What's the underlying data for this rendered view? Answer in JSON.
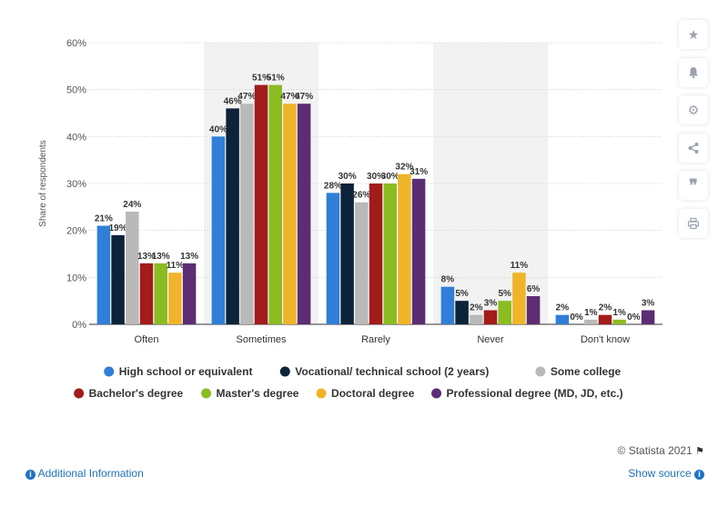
{
  "chart_data": {
    "type": "bar",
    "title": "",
    "xlabel": "",
    "ylabel": "Share of respondents",
    "ylim": [
      0,
      60
    ],
    "yticks": [
      0,
      10,
      20,
      30,
      40,
      50,
      60
    ],
    "ytick_suffix": "%",
    "grid": true,
    "legend_position": "bottom",
    "categories": [
      "Often",
      "Sometimes",
      "Rarely",
      "Never",
      "Don't know"
    ],
    "series": [
      {
        "name": "High school or equivalent",
        "color": "#2f7ed8",
        "values": [
          21,
          40,
          28,
          8,
          2
        ]
      },
      {
        "name": "Vocational/ technical school (2 years)",
        "color": "#0d233a",
        "values": [
          19,
          46,
          30,
          5,
          0
        ]
      },
      {
        "name": "Some college",
        "color": "#b9b9b9",
        "values": [
          24,
          47,
          26,
          2,
          1
        ]
      },
      {
        "name": "Bachelor's degree",
        "color": "#a31c1c",
        "values": [
          13,
          51,
          30,
          3,
          2
        ]
      },
      {
        "name": "Master's degree",
        "color": "#8bbc21",
        "values": [
          13,
          51,
          30,
          5,
          1
        ]
      },
      {
        "name": "Doctoral degree",
        "color": "#f0b429",
        "values": [
          11,
          47,
          32,
          11,
          0
        ]
      },
      {
        "name": "Professional degree (MD, JD, etc.)",
        "color": "#5c2d72",
        "values": [
          13,
          47,
          31,
          6,
          3
        ]
      }
    ]
  },
  "toolbar": {
    "icons": [
      "star-icon",
      "bell-icon",
      "gear-icon",
      "share-icon",
      "quote-icon",
      "print-icon"
    ]
  },
  "footer": {
    "copyright": "© Statista 2021",
    "additional_info": "Additional Information",
    "show_source": "Show source"
  }
}
